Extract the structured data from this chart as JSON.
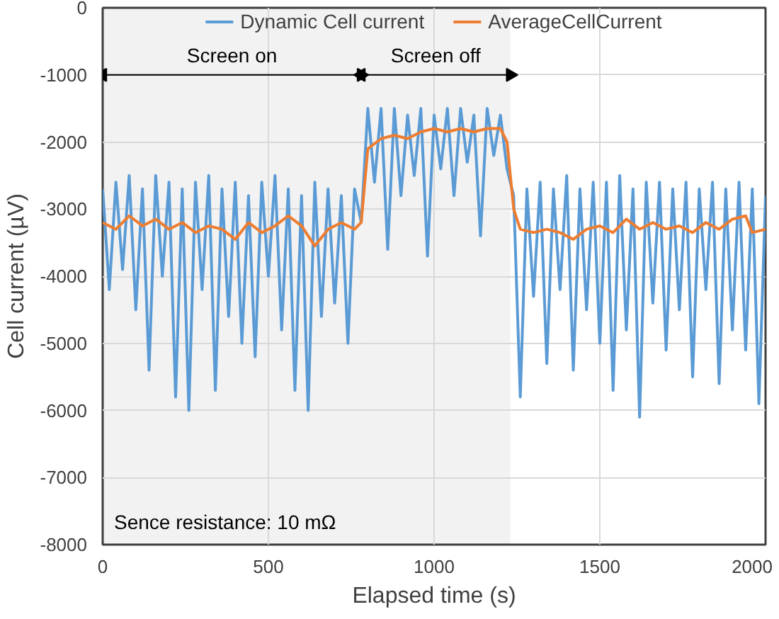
{
  "chart_data": {
    "type": "line",
    "xlabel": "Elapsed time (s)",
    "ylabel": "Cell current (µV)",
    "xlim": [
      0,
      2000
    ],
    "xticks": [
      0,
      500,
      1000,
      1500,
      2000
    ],
    "ylim": [
      -8000,
      0
    ],
    "yticks": [
      -8000,
      -7000,
      -6000,
      -5000,
      -4000,
      -3000,
      -2000,
      -1000,
      0
    ],
    "grid": true,
    "legend": "top",
    "line_style": "solid",
    "marker": "none",
    "bands": [
      {
        "axis": "x",
        "from": 0,
        "to": 780,
        "label": "Screen on"
      },
      {
        "axis": "x",
        "from": 780,
        "to": 1230,
        "label": "Screen off"
      }
    ],
    "annotations": [
      "Sence resistance: 10 mΩ"
    ],
    "series": [
      {
        "name": "Dynamic Cell current",
        "color": "#5b9bd5",
        "x": [
          0,
          20,
          40,
          60,
          80,
          100,
          120,
          140,
          160,
          180,
          200,
          220,
          240,
          260,
          280,
          300,
          320,
          340,
          360,
          380,
          400,
          420,
          440,
          460,
          480,
          500,
          520,
          540,
          560,
          580,
          600,
          620,
          640,
          660,
          680,
          700,
          720,
          740,
          760,
          780,
          800,
          820,
          840,
          860,
          880,
          900,
          920,
          940,
          960,
          980,
          1000,
          1020,
          1040,
          1060,
          1080,
          1100,
          1120,
          1140,
          1160,
          1180,
          1200,
          1220,
          1240,
          1260,
          1280,
          1300,
          1320,
          1340,
          1360,
          1380,
          1400,
          1420,
          1440,
          1460,
          1480,
          1500,
          1520,
          1540,
          1560,
          1580,
          1600,
          1620,
          1640,
          1660,
          1680,
          1700,
          1720,
          1740,
          1760,
          1780,
          1800,
          1820,
          1840,
          1860,
          1880,
          1900,
          1920,
          1940,
          1960,
          1980,
          2000
        ],
        "values": [
          -2700,
          -4200,
          -2600,
          -3900,
          -2500,
          -4500,
          -2700,
          -5400,
          -2500,
          -4000,
          -2600,
          -5800,
          -2700,
          -6000,
          -2600,
          -4200,
          -2500,
          -5700,
          -2700,
          -4600,
          -2600,
          -5000,
          -2800,
          -5200,
          -2600,
          -4000,
          -2500,
          -4800,
          -2700,
          -5700,
          -2800,
          -6000,
          -2600,
          -4600,
          -2700,
          -4400,
          -2800,
          -5000,
          -2700,
          -3200,
          -1500,
          -2600,
          -1500,
          -3600,
          -1500,
          -2800,
          -1600,
          -2500,
          -1500,
          -3700,
          -1600,
          -2400,
          -1500,
          -2800,
          -1500,
          -2300,
          -1600,
          -3400,
          -1500,
          -2200,
          -1600,
          -2400,
          -2800,
          -5800,
          -2700,
          -4300,
          -2600,
          -5300,
          -2700,
          -4200,
          -2500,
          -5400,
          -2700,
          -4500,
          -2600,
          -5000,
          -2600,
          -5700,
          -2500,
          -4800,
          -2700,
          -6100,
          -2600,
          -4400,
          -2600,
          -5100,
          -2700,
          -4500,
          -2600,
          -5500,
          -2700,
          -4200,
          -2600,
          -5600,
          -2700,
          -4800,
          -2600,
          -5100,
          -2700,
          -5900,
          -2800
        ]
      },
      {
        "name": "AverageCellCurrent",
        "color": "#ed7d31",
        "x": [
          0,
          40,
          80,
          120,
          160,
          200,
          240,
          280,
          320,
          360,
          400,
          440,
          480,
          520,
          560,
          600,
          640,
          680,
          720,
          760,
          780,
          800,
          840,
          880,
          920,
          960,
          1000,
          1040,
          1080,
          1120,
          1160,
          1200,
          1220,
          1240,
          1260,
          1300,
          1340,
          1380,
          1420,
          1460,
          1500,
          1540,
          1580,
          1620,
          1660,
          1700,
          1740,
          1780,
          1820,
          1860,
          1900,
          1940,
          1960,
          2000
        ],
        "values": [
          -3200,
          -3300,
          -3100,
          -3250,
          -3150,
          -3300,
          -3200,
          -3350,
          -3250,
          -3300,
          -3450,
          -3200,
          -3350,
          -3250,
          -3100,
          -3250,
          -3550,
          -3300,
          -3200,
          -3300,
          -3200,
          -2100,
          -1950,
          -1900,
          -1950,
          -1850,
          -1800,
          -1850,
          -1800,
          -1850,
          -1800,
          -1800,
          -2000,
          -3000,
          -3300,
          -3350,
          -3300,
          -3350,
          -3450,
          -3300,
          -3250,
          -3350,
          -3150,
          -3300,
          -3200,
          -3300,
          -3250,
          -3350,
          -3200,
          -3300,
          -3150,
          -3100,
          -3350,
          -3300
        ]
      }
    ]
  }
}
